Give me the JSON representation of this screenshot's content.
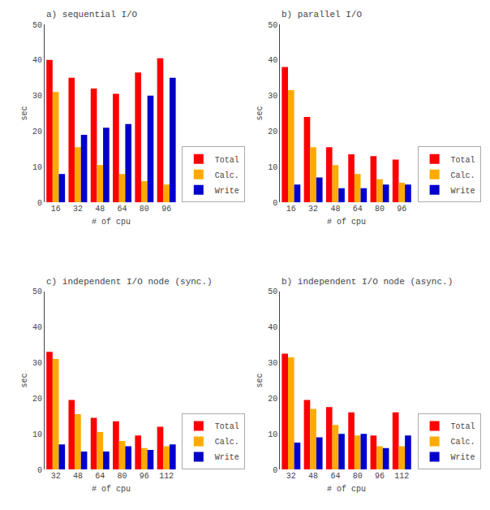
{
  "chart_data": [
    {
      "type": "bar",
      "title": "a) sequential I/O",
      "categories": [
        "16",
        "32",
        "48",
        "64",
        "80",
        "96"
      ],
      "series": [
        {
          "name": "Total",
          "color": "#ff0000",
          "values": [
            40,
            35,
            32,
            30.5,
            36.5,
            40.5
          ]
        },
        {
          "name": "Calc.",
          "color": "#ffaa00",
          "values": [
            31,
            15.5,
            10.5,
            8,
            6,
            5
          ]
        },
        {
          "name": "Write",
          "color": "#0000cc",
          "values": [
            8,
            19,
            21,
            22,
            30,
            35
          ]
        }
      ],
      "xlabel": "# of cpu",
      "ylabel": "sec",
      "ylim": [
        0,
        50
      ],
      "yticks": [
        0,
        10,
        20,
        30,
        40,
        50
      ],
      "grid": false,
      "legend": "lower right"
    },
    {
      "type": "bar",
      "title": "b) parallel I/O",
      "categories": [
        "16",
        "32",
        "48",
        "64",
        "80",
        "96"
      ],
      "series": [
        {
          "name": "Total",
          "color": "#ff0000",
          "values": [
            38,
            24,
            15.5,
            13.5,
            13,
            12
          ]
        },
        {
          "name": "Calc.",
          "color": "#ffaa00",
          "values": [
            31.5,
            15.5,
            10.5,
            8,
            6.5,
            5.5
          ]
        },
        {
          "name": "Write",
          "color": "#0000cc",
          "values": [
            5,
            7,
            4,
            4,
            5,
            5
          ]
        }
      ],
      "xlabel": "# of cpu",
      "ylabel": "sec",
      "ylim": [
        0,
        50
      ],
      "yticks": [
        0,
        10,
        20,
        30,
        40,
        50
      ],
      "grid": false,
      "legend": "lower right"
    },
    {
      "type": "bar",
      "title": "c) independent I/O node (sync.)",
      "categories": [
        "32",
        "48",
        "64",
        "80",
        "96",
        "112"
      ],
      "series": [
        {
          "name": "Total",
          "color": "#ff0000",
          "values": [
            33,
            19.5,
            14.5,
            13.5,
            9.5,
            12
          ]
        },
        {
          "name": "Calc.",
          "color": "#ffaa00",
          "values": [
            31,
            15.5,
            10.5,
            8,
            6,
            6.5
          ]
        },
        {
          "name": "Write",
          "color": "#0000cc",
          "values": [
            7,
            5,
            5,
            6.5,
            5.5,
            7
          ]
        }
      ],
      "xlabel": "# of cpu",
      "ylabel": "sec",
      "ylim": [
        0,
        50
      ],
      "yticks": [
        0,
        10,
        20,
        30,
        40,
        50
      ],
      "grid": false,
      "legend": "lower right"
    },
    {
      "type": "bar",
      "title": "b) independent I/O node (async.)",
      "categories": [
        "32",
        "48",
        "64",
        "80",
        "96",
        "112"
      ],
      "series": [
        {
          "name": "Total",
          "color": "#ff0000",
          "values": [
            32.5,
            19.5,
            17.5,
            16,
            9.5,
            16
          ]
        },
        {
          "name": "Calc.",
          "color": "#ffaa00",
          "values": [
            31.5,
            17,
            12.5,
            9.5,
            6.5,
            6.5
          ]
        },
        {
          "name": "Write",
          "color": "#0000cc",
          "values": [
            7.5,
            9,
            10,
            10,
            6,
            9.5
          ]
        }
      ],
      "xlabel": "# of cpu",
      "ylabel": "sec",
      "ylim": [
        0,
        50
      ],
      "yticks": [
        0,
        10,
        20,
        30,
        40,
        50
      ],
      "grid": false,
      "legend": "lower right"
    }
  ]
}
